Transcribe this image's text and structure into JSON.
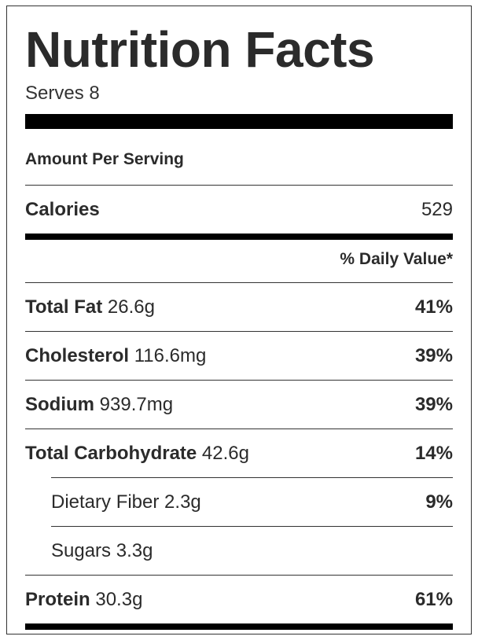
{
  "label": {
    "title": "Nutrition Facts",
    "serves": "Serves 8",
    "amount_per_serving": "Amount Per Serving",
    "calories": {
      "name": "Calories",
      "value": "529"
    },
    "daily_value_header": "% Daily Value*",
    "nutrients": [
      {
        "name": "Total Fat",
        "amount": "26.6g",
        "daily_value": "41%"
      },
      {
        "name": "Cholesterol",
        "amount": "116.6mg",
        "daily_value": "39%"
      },
      {
        "name": "Sodium",
        "amount": "939.7mg",
        "daily_value": "39%"
      },
      {
        "name": "Total Carbohydrate",
        "amount": "42.6g",
        "daily_value": "14%"
      },
      {
        "name": "Dietary Fiber",
        "amount": "2.3g",
        "daily_value": "9%"
      },
      {
        "name": "Sugars",
        "amount": "3.3g",
        "daily_value": ""
      },
      {
        "name": "Protein",
        "amount": "30.3g",
        "daily_value": "61%"
      }
    ]
  }
}
